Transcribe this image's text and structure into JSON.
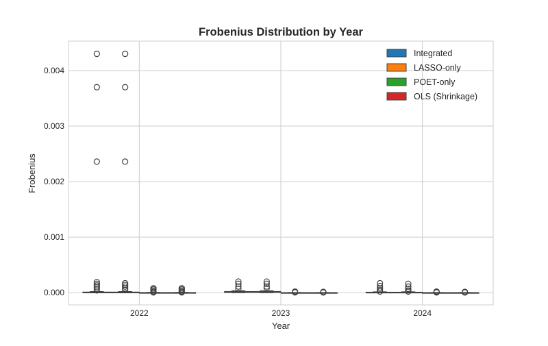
{
  "chart_data": {
    "type": "boxplot",
    "title": "Frobenius Distribution by Year",
    "xlabel": "Year",
    "ylabel": "Frobenius",
    "categories": [
      "2022",
      "2023",
      "2024"
    ],
    "ylim": [
      -0.00022,
      0.00453
    ],
    "yticks": [
      0.0,
      0.001,
      0.002,
      0.003,
      0.004
    ],
    "ytick_labels": [
      "0.000",
      "0.001",
      "0.002",
      "0.003",
      "0.004"
    ],
    "grid": true,
    "legend_position": "top-right",
    "series": [
      {
        "name": "Integrated",
        "color": "#1f77b4",
        "boxes": [
          {
            "q1": 0.0,
            "median": 5e-06,
            "q3": 1e-05,
            "whisker_low": 0.0,
            "whisker_high": 2e-05,
            "outliers": [
              0.0043,
              0.0037,
              0.00236,
              0.00019,
              0.00016,
              0.00013,
              0.0001,
              7e-05,
              4e-05
            ]
          },
          {
            "q1": 5e-06,
            "median": 1e-05,
            "q3": 2e-05,
            "whisker_low": 0.0,
            "whisker_high": 4e-05,
            "outliers": [
              0.0002,
              0.00016,
              0.00011,
              7e-05
            ]
          },
          {
            "q1": 0.0,
            "median": 3e-06,
            "q3": 8e-06,
            "whisker_low": 0.0,
            "whisker_high": 1.5e-05,
            "outliers": [
              0.00017,
              0.00012,
              8e-05,
              5e-05,
              2e-05
            ]
          }
        ]
      },
      {
        "name": "LASSO-only",
        "color": "#ff7f0e",
        "boxes": [
          {
            "q1": 0.0,
            "median": 5e-06,
            "q3": 1e-05,
            "whisker_low": 0.0,
            "whisker_high": 2e-05,
            "outliers": [
              0.0043,
              0.0037,
              0.00236,
              0.00017,
              0.00014,
              0.00011,
              8e-05,
              5e-05
            ]
          },
          {
            "q1": 5e-06,
            "median": 1e-05,
            "q3": 2e-05,
            "whisker_low": 0.0,
            "whisker_high": 4e-05,
            "outliers": [
              0.0002,
              0.00016,
              0.00011,
              8e-05
            ]
          },
          {
            "q1": 0.0,
            "median": 3e-06,
            "q3": 8e-06,
            "whisker_low": 0.0,
            "whisker_high": 1.5e-05,
            "outliers": [
              0.00016,
              0.00011,
              7e-05,
              4e-05,
              2e-05
            ]
          }
        ]
      },
      {
        "name": "POET-only",
        "color": "#2ca02c",
        "boxes": [
          {
            "q1": 0.0,
            "median": 0.0,
            "q3": 2e-06,
            "whisker_low": 0.0,
            "whisker_high": 4e-06,
            "outliers": [
              8e-05,
              6e-05,
              4e-05,
              2e-05,
              5e-06
            ]
          },
          {
            "q1": 0.0,
            "median": 0.0,
            "q3": 1e-06,
            "whisker_low": 0.0,
            "whisker_high": 2e-06,
            "outliers": [
              2e-05,
              1e-05,
              5e-06
            ]
          },
          {
            "q1": 0.0,
            "median": 0.0,
            "q3": 1e-06,
            "whisker_low": 0.0,
            "whisker_high": 2e-06,
            "outliers": [
              2e-05,
              1e-05,
              5e-06
            ]
          }
        ]
      },
      {
        "name": "OLS (Shrinkage)",
        "color": "#d62728",
        "boxes": [
          {
            "q1": 0.0,
            "median": 0.0,
            "q3": 2e-06,
            "whisker_low": 0.0,
            "whisker_high": 4e-06,
            "outliers": [
              8e-05,
              6e-05,
              4e-05,
              2e-05,
              5e-06
            ]
          },
          {
            "q1": 0.0,
            "median": 0.0,
            "q3": 1e-06,
            "whisker_low": 0.0,
            "whisker_high": 2e-06,
            "outliers": [
              1.5e-05,
              8e-06,
              3e-06
            ]
          },
          {
            "q1": 0.0,
            "median": 0.0,
            "q3": 1e-06,
            "whisker_low": 0.0,
            "whisker_high": 2e-06,
            "outliers": [
              1.5e-05,
              8e-06,
              3e-06
            ]
          }
        ]
      }
    ]
  }
}
